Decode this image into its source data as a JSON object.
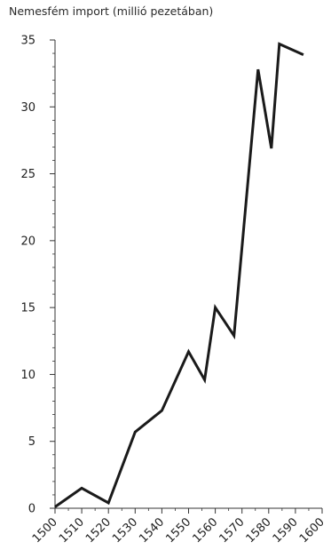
{
  "chart_data": {
    "type": "line",
    "title": "Nemesfém import (millió pezetában)",
    "xlabel": "",
    "ylabel": "",
    "xlim": [
      1500,
      1600
    ],
    "ylim": [
      0,
      35
    ],
    "x_ticks": [
      "1500",
      "1510",
      "1520",
      "1530",
      "1540",
      "1550",
      "1560",
      "1570",
      "1580",
      "1590",
      "1600"
    ],
    "y_ticks": [
      "0",
      "5",
      "10",
      "15",
      "20",
      "25",
      "30",
      "35"
    ],
    "grid": false,
    "legend": "none",
    "line_color": "#1a1a1a",
    "series": [
      {
        "x": [
          1500,
          1510,
          1520,
          1530,
          1540,
          1550,
          1556,
          1560,
          1567,
          1576,
          1581,
          1584,
          1593
        ],
        "values": [
          0.1,
          1.5,
          0.4,
          5.7,
          7.3,
          11.7,
          9.6,
          15.0,
          12.9,
          32.8,
          26.9,
          34.7,
          33.9
        ]
      }
    ]
  }
}
